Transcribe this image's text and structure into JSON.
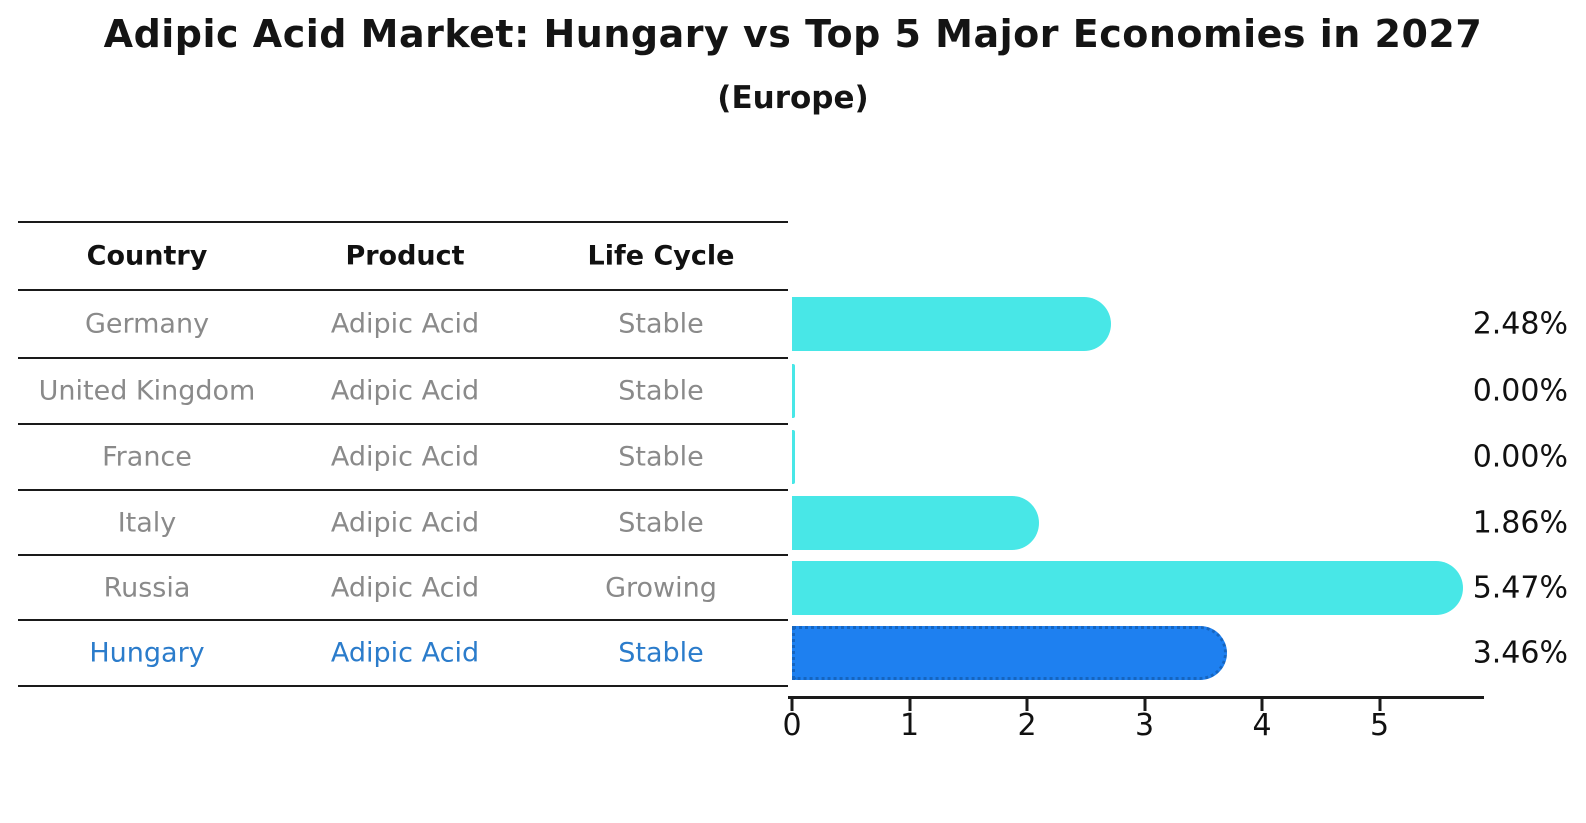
{
  "title": "Adipic Acid Market: Hungary vs Top 5 Major Economies in 2027",
  "subtitle": "(Europe)",
  "table": {
    "headers": [
      "Country",
      "Product",
      "Life Cycle"
    ],
    "rows": [
      {
        "country": "Germany",
        "product": "Adipic Acid",
        "life_cycle": "Stable"
      },
      {
        "country": "United Kingdom",
        "product": "Adipic Acid",
        "life_cycle": "Stable"
      },
      {
        "country": "France",
        "product": "Adipic Acid",
        "life_cycle": "Stable"
      },
      {
        "country": "Italy",
        "product": "Adipic Acid",
        "life_cycle": "Stable"
      },
      {
        "country": "Russia",
        "product": "Adipic Acid",
        "life_cycle": "Growing"
      },
      {
        "country": "Hungary",
        "product": "Adipic Acid",
        "life_cycle": "Stable"
      }
    ]
  },
  "chart_data": {
    "type": "bar",
    "orientation": "horizontal",
    "title": "Adipic Acid Market: Hungary vs Top 5 Major Economies in 2027 (Europe)",
    "categories": [
      "Germany",
      "United Kingdom",
      "France",
      "Italy",
      "Russia",
      "Hungary"
    ],
    "values": [
      2.48,
      0.0,
      0.0,
      1.86,
      5.47,
      3.46
    ],
    "bar_labels": [
      "2.48%",
      "0.00%",
      "0.00%",
      "1.86%",
      "5.47%",
      "3.46%"
    ],
    "xlabel": "",
    "ylabel": "",
    "xlim": [
      0,
      5.7
    ],
    "x_ticks": [
      0,
      1,
      2,
      3,
      4,
      5
    ],
    "grid": false,
    "legend": false,
    "highlight_category": "Hungary"
  },
  "colors": {
    "bar_default": "#48E7E7",
    "bar_highlight": "#1E80F0",
    "bar_highlight_border": "#1565C0",
    "highlight_text": "#2B7CCB",
    "row_text": "#8A8A8A",
    "header_text": "#111111",
    "label_text": "#111111"
  }
}
